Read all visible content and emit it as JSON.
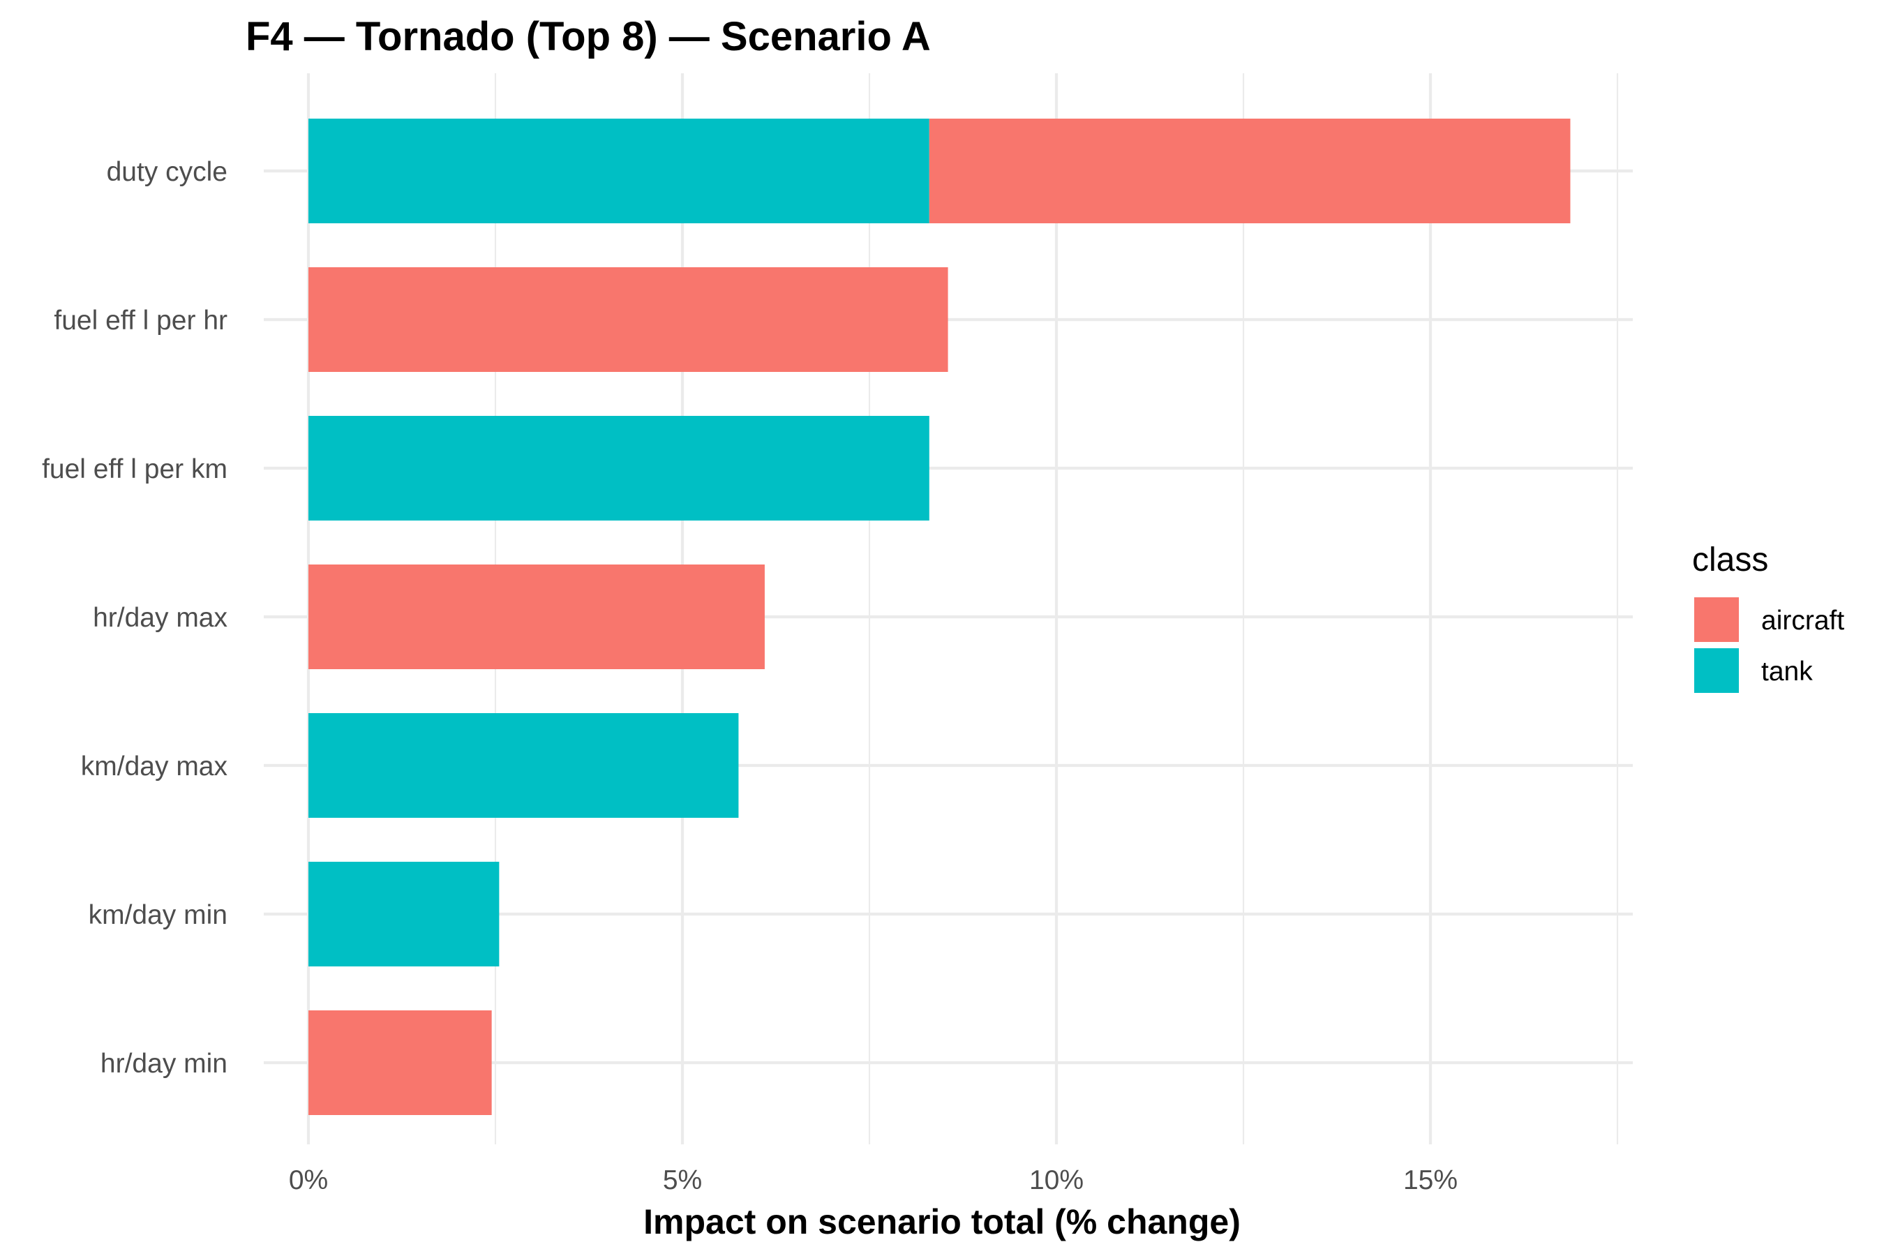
{
  "chart_data": {
    "type": "bar",
    "orientation": "horizontal",
    "stacked": true,
    "title": "F4 — Tornado (Top 8) — Scenario A",
    "xlabel": "Impact on scenario total (% change)",
    "ylabel": "",
    "xlim": [
      0,
      17.8
    ],
    "x_ticks": [
      0,
      5,
      10,
      15
    ],
    "x_tick_labels": [
      "0%",
      "5%",
      "10%",
      "15%"
    ],
    "categories": [
      "duty cycle",
      "fuel eff l per hr",
      "fuel eff l per km",
      "hr/day max",
      "km/day max",
      "km/day min",
      "hr/day min"
    ],
    "series": [
      {
        "name": "tank",
        "color": "#00BFC4",
        "values": [
          8.3,
          0,
          8.3,
          0,
          5.75,
          2.55,
          0
        ]
      },
      {
        "name": "aircraft",
        "color": "#F8766D",
        "values": [
          8.57,
          8.55,
          0,
          6.1,
          0,
          0,
          2.45
        ]
      }
    ],
    "legend": {
      "title": "class",
      "position": "right",
      "entries": [
        {
          "label": "aircraft",
          "color": "#F8766D"
        },
        {
          "label": "tank",
          "color": "#00BFC4"
        }
      ]
    },
    "grid": true
  }
}
